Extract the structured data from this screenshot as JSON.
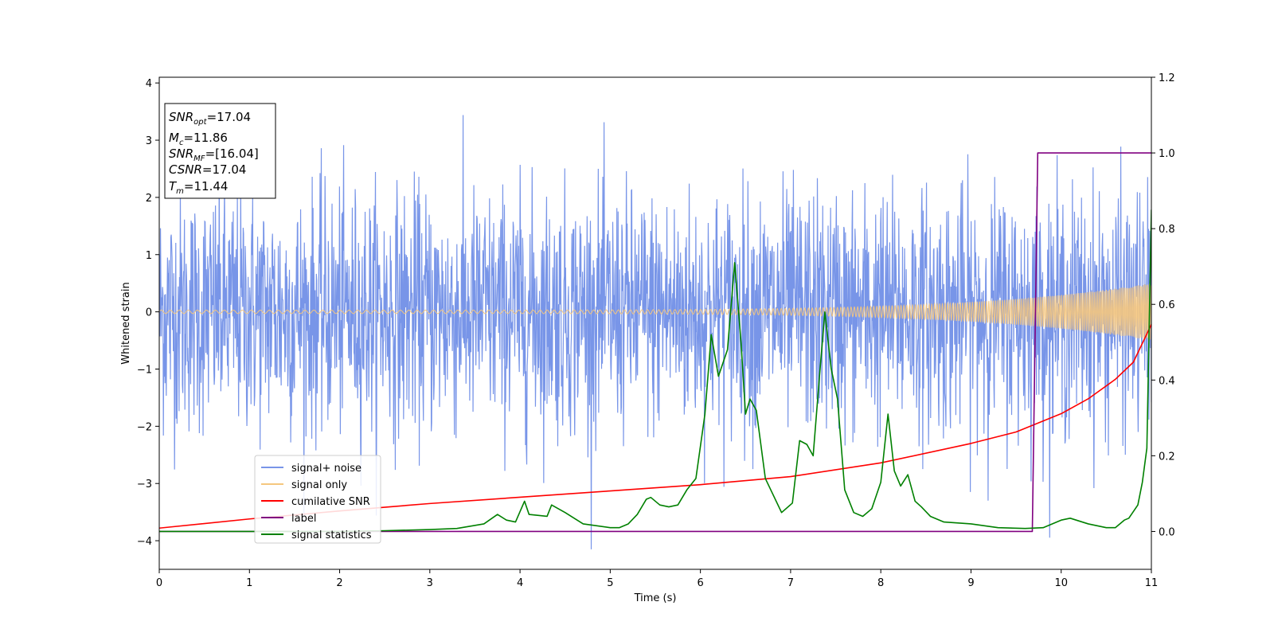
{
  "chart_data": {
    "type": "line",
    "xlabel": "Time (s)",
    "ylabel": "Whitened strain",
    "xlim": [
      0,
      11
    ],
    "ylim_left": [
      -4.5,
      4.1
    ],
    "ylim_right": [
      -0.1,
      1.2
    ],
    "x_ticks": [
      0,
      1,
      2,
      3,
      4,
      5,
      6,
      7,
      8,
      9,
      10,
      11
    ],
    "y_ticks_left": [
      -4,
      -3,
      -2,
      -1,
      0,
      1,
      2,
      3,
      4
    ],
    "y_ticks_right": [
      "0.0",
      "0.2",
      "0.4",
      "0.6",
      "0.8",
      "1.0",
      "1.2"
    ],
    "grid": false,
    "legend_position": "lower-left",
    "annotations": {
      "snr_opt": {
        "name": "SNR",
        "sub": "opt",
        "value": "=17.04"
      },
      "mc": {
        "name": "M",
        "sub": "c",
        "value": "=11.86"
      },
      "snr_mf": {
        "name": "SNR",
        "sub": "MF",
        "value": "=[16.04]"
      },
      "csnr": {
        "name": "CSNR",
        "sub": "",
        "value": "=17.04"
      },
      "tm": {
        "name": "T",
        "sub": "m",
        "value": "=11.44"
      }
    },
    "series": [
      {
        "name": "signal+ noise",
        "axis": "left",
        "color": "#7895e8",
        "style": "noise",
        "description_values": {
          "amplitude_sigma": 1.0,
          "peak_max": 3.65,
          "peak_min": -4.15
        }
      },
      {
        "name": "signal only",
        "axis": "left",
        "color": "#f5c77e",
        "style": "chirp",
        "description_values": {
          "start_amplitude": 0.03,
          "end_amplitude": 0.5,
          "start_freq_hz": 10,
          "end_freq_hz": 60,
          "end_time": 11
        }
      },
      {
        "name": "cumilative SNR",
        "axis": "left",
        "color": "#ff0000",
        "x": [
          0,
          1,
          2,
          3,
          4,
          5,
          6,
          7,
          8,
          9,
          9.5,
          10,
          10.3,
          10.6,
          10.8,
          11
        ],
        "y": [
          -3.78,
          -3.62,
          -3.48,
          -3.35,
          -3.24,
          -3.13,
          -3.02,
          -2.88,
          -2.64,
          -2.3,
          -2.1,
          -1.78,
          -1.52,
          -1.18,
          -0.88,
          -0.22
        ]
      },
      {
        "name": "label",
        "axis": "right",
        "color": "#800080",
        "x": [
          0,
          9.68,
          9.74,
          11
        ],
        "y": [
          0,
          0,
          1,
          1
        ]
      },
      {
        "name": "signal statistics",
        "axis": "right",
        "color": "#008000",
        "x": [
          0,
          1,
          2,
          2.5,
          3,
          3.3,
          3.6,
          3.75,
          3.85,
          3.95,
          4.05,
          4.1,
          4.3,
          4.35,
          4.5,
          4.7,
          5,
          5.1,
          5.2,
          5.3,
          5.4,
          5.45,
          5.55,
          5.65,
          5.75,
          5.85,
          5.95,
          6.05,
          6.12,
          6.2,
          6.3,
          6.38,
          6.45,
          6.5,
          6.55,
          6.62,
          6.72,
          6.9,
          7.02,
          7.1,
          7.18,
          7.25,
          7.32,
          7.38,
          7.45,
          7.52,
          7.6,
          7.7,
          7.8,
          7.9,
          8.0,
          8.08,
          8.15,
          8.22,
          8.3,
          8.38,
          8.45,
          8.55,
          8.7,
          9.0,
          9.3,
          9.6,
          9.8,
          10.0,
          10.1,
          10.3,
          10.5,
          10.6,
          10.7,
          10.75,
          10.85,
          10.9,
          10.95,
          11
        ],
        "y": [
          0,
          0,
          0,
          0.002,
          0.005,
          0.008,
          0.02,
          0.045,
          0.03,
          0.025,
          0.08,
          0.045,
          0.04,
          0.07,
          0.05,
          0.02,
          0.01,
          0.01,
          0.02,
          0.045,
          0.085,
          0.09,
          0.07,
          0.065,
          0.07,
          0.11,
          0.14,
          0.31,
          0.52,
          0.41,
          0.48,
          0.71,
          0.5,
          0.31,
          0.35,
          0.32,
          0.14,
          0.05,
          0.075,
          0.24,
          0.23,
          0.2,
          0.41,
          0.58,
          0.43,
          0.35,
          0.11,
          0.05,
          0.04,
          0.06,
          0.13,
          0.31,
          0.16,
          0.12,
          0.15,
          0.08,
          0.065,
          0.04,
          0.025,
          0.02,
          0.01,
          0.008,
          0.01,
          0.03,
          0.035,
          0.02,
          0.01,
          0.01,
          0.03,
          0.035,
          0.07,
          0.13,
          0.22,
          0.85
        ]
      }
    ]
  }
}
